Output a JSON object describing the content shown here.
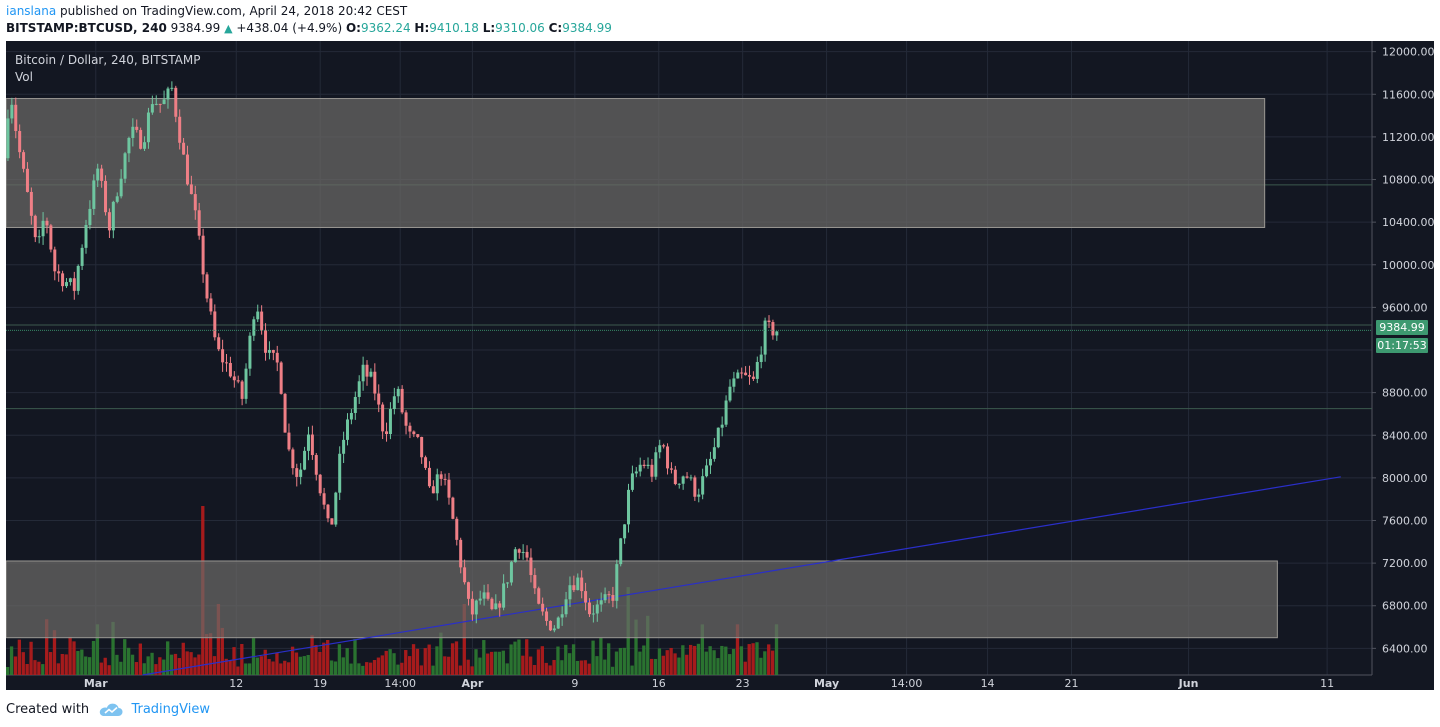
{
  "header": {
    "author": "ianslana",
    "published_text": "published on TradingView.com, April 24, 2018 20:42 CEST",
    "symbol": "BITSTAMP:BTCUSD, 240",
    "last": "9384.99",
    "change": "+438.04 (+4.9%)",
    "o_label": "O:",
    "o_value": "9362.24",
    "h_label": "H:",
    "h_value": "9410.18",
    "l_label": "L:",
    "l_value": "9310.06",
    "c_label": "C:",
    "c_value": "9384.99"
  },
  "legend": {
    "series": "Bitcoin / Dollar, 240, BITSTAMP",
    "volume": "Vol"
  },
  "last_price_tag": "9384.99",
  "countdown_tag": "01:17:53",
  "footer": {
    "created_with": "Created with",
    "brand": "TradingView"
  },
  "colors": {
    "background": "#131722",
    "grid": "#242a38",
    "up": "#6ec6a0",
    "down": "#ef7f86",
    "vol_up": "#2e7d32",
    "vol_down": "#b71c1c",
    "trendline": "#2a2fc9",
    "zone_fill": "#6b6966",
    "axis_text": "#d1d4dc"
  },
  "chart_data": {
    "type": "candlestick",
    "title": "Bitcoin / Dollar, 240, BITSTAMP",
    "ylim": [
      6150,
      12100
    ],
    "y_ticks": [
      {
        "value": 12000,
        "label": "12000.00"
      },
      {
        "value": 11600,
        "label": "11600.00"
      },
      {
        "value": 11200,
        "label": "11200.00"
      },
      {
        "value": 10800,
        "label": "10800.00"
      },
      {
        "value": 10400,
        "label": "10400.00"
      },
      {
        "value": 10000,
        "label": "10000.00"
      },
      {
        "value": 9600,
        "label": "9600.00"
      },
      {
        "value": 9200,
        "label": ""
      },
      {
        "value": 8800,
        "label": "8800.00"
      },
      {
        "value": 8400,
        "label": "8400.00"
      },
      {
        "value": 8000,
        "label": "8000.00"
      },
      {
        "value": 7600,
        "label": "7600.00"
      },
      {
        "value": 7200,
        "label": "7200.00"
      },
      {
        "value": 6800,
        "label": "6800.00"
      },
      {
        "value": 6400,
        "label": "6400.00"
      }
    ],
    "x_ticks": [
      "Mar",
      "12",
      "19",
      "14:00",
      "Apr",
      "9",
      "16",
      "23",
      "May",
      "14:00",
      "14",
      "21",
      "Jun",
      "11"
    ],
    "bold_x_ticks": [
      "Mar",
      "Apr",
      "May",
      "Jun"
    ],
    "bars_total_on_axis": 1400,
    "x_tick_bar_index": [
      92,
      236,
      322,
      404,
      478,
      583,
      669,
      755,
      841,
      923,
      1006,
      1092,
      1212,
      1354
    ],
    "price_path": [
      [
        0,
        11000
      ],
      [
        6,
        11680
      ],
      [
        14,
        11150
      ],
      [
        24,
        10650
      ],
      [
        34,
        10100
      ],
      [
        42,
        10500
      ],
      [
        52,
        9950
      ],
      [
        62,
        9850
      ],
      [
        72,
        9780
      ],
      [
        84,
        10400
      ],
      [
        96,
        10900
      ],
      [
        108,
        10350
      ],
      [
        118,
        10800
      ],
      [
        130,
        11250
      ],
      [
        142,
        11150
      ],
      [
        152,
        11550
      ],
      [
        162,
        11500
      ],
      [
        172,
        11650
      ],
      [
        184,
        11000
      ],
      [
        196,
        10450
      ],
      [
        208,
        9700
      ],
      [
        218,
        9200
      ],
      [
        232,
        9000
      ],
      [
        244,
        8750
      ],
      [
        258,
        9700
      ],
      [
        270,
        9150
      ],
      [
        282,
        9050
      ],
      [
        290,
        8300
      ],
      [
        302,
        8000
      ],
      [
        312,
        8450
      ],
      [
        322,
        8000
      ],
      [
        334,
        7450
      ],
      [
        346,
        8300
      ],
      [
        358,
        8700
      ],
      [
        368,
        9000
      ],
      [
        378,
        8900
      ],
      [
        390,
        8400
      ],
      [
        402,
        8850
      ],
      [
        414,
        8400
      ],
      [
        426,
        8300
      ],
      [
        436,
        7850
      ],
      [
        448,
        8050
      ],
      [
        458,
        7700
      ],
      [
        468,
        7200
      ],
      [
        478,
        6700
      ],
      [
        490,
        6900
      ],
      [
        502,
        6700
      ],
      [
        514,
        7000
      ],
      [
        526,
        7400
      ],
      [
        536,
        7250
      ],
      [
        546,
        6800
      ],
      [
        556,
        6650
      ],
      [
        566,
        6600
      ],
      [
        578,
        7000
      ],
      [
        590,
        7050
      ],
      [
        600,
        6750
      ],
      [
        612,
        6800
      ],
      [
        624,
        6900
      ],
      [
        634,
        7500
      ],
      [
        642,
        7950
      ],
      [
        654,
        8150
      ],
      [
        664,
        8050
      ],
      [
        674,
        8350
      ],
      [
        686,
        7950
      ],
      [
        698,
        8050
      ],
      [
        710,
        7850
      ],
      [
        722,
        8100
      ],
      [
        734,
        8450
      ],
      [
        744,
        8850
      ],
      [
        756,
        8950
      ],
      [
        768,
        8900
      ],
      [
        780,
        9400
      ],
      [
        788,
        9385
      ]
    ],
    "volume": {
      "base_max": 130,
      "spikes": [
        {
          "bar": 198,
          "height": 1.0,
          "dir": "down"
        },
        {
          "bar": 214,
          "height": 0.42,
          "dir": "down"
        },
        {
          "bar": 40,
          "height": 0.33,
          "dir": "down"
        },
        {
          "bar": 90,
          "height": 0.3,
          "dir": "up"
        },
        {
          "bar": 468,
          "height": 0.42,
          "dir": "down"
        },
        {
          "bar": 636,
          "height": 0.52,
          "dir": "up"
        },
        {
          "bar": 654,
          "height": 0.35,
          "dir": "up"
        },
        {
          "bar": 746,
          "height": 0.3,
          "dir": "down"
        },
        {
          "bar": 786,
          "height": 0.3,
          "dir": "up"
        }
      ]
    },
    "zones": [
      {
        "from_bar": 0,
        "to_bar": 1290,
        "top": 11560,
        "bottom": 10350
      },
      {
        "from_bar": 0,
        "to_bar": 1303,
        "top": 7220,
        "bottom": 6500
      }
    ],
    "trendline": {
      "from": [
        140,
        6150
      ],
      "to": [
        1368,
        8010
      ]
    },
    "h_lines": [
      {
        "value": 10750,
        "color": "#3c5a4e"
      },
      {
        "value": 9435,
        "color": "#3c5a4e"
      },
      {
        "value": 8650,
        "color": "#3c5a4e"
      }
    ],
    "last_value": 9384.99
  }
}
